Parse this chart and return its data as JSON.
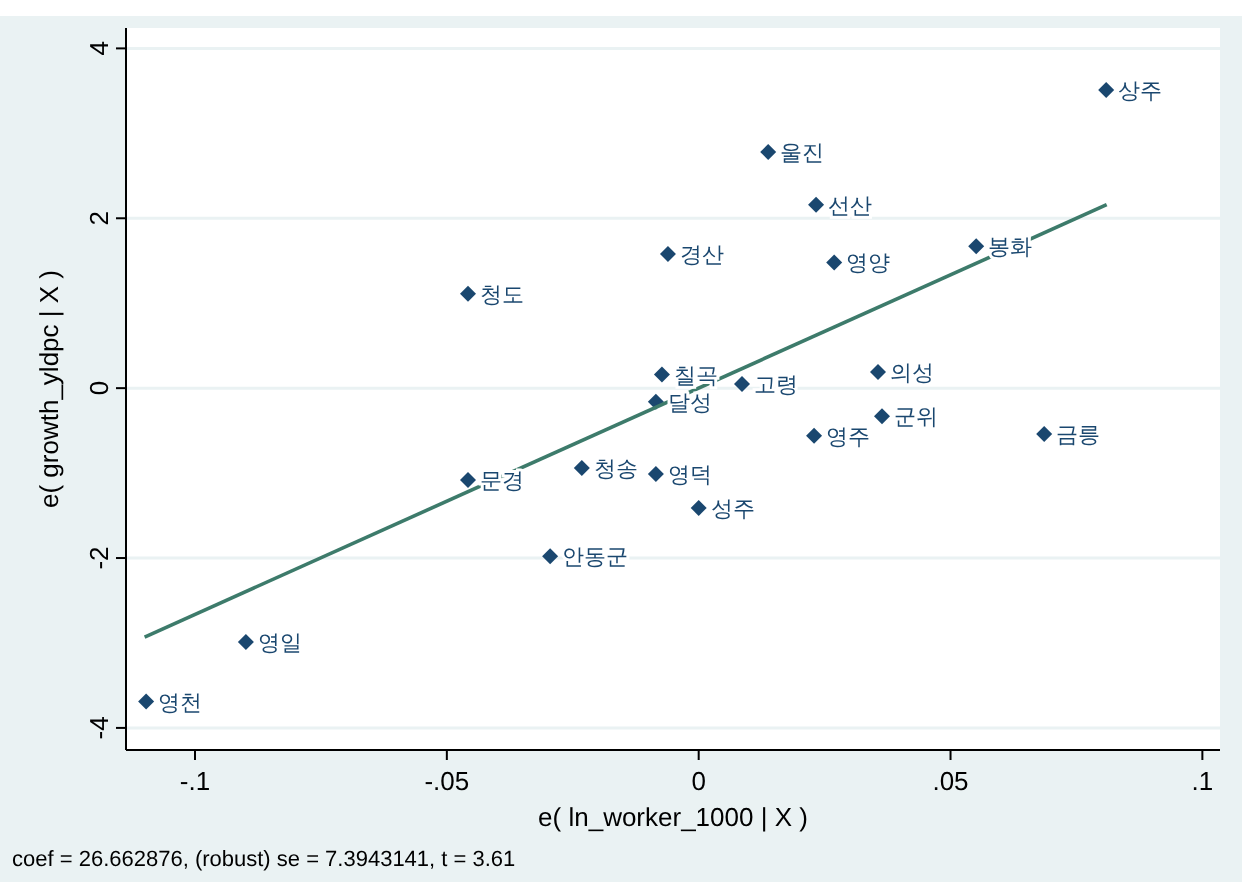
{
  "chart_data": {
    "type": "scatter",
    "xlabel": "e( ln_worker_1000 | X )",
    "ylabel": "e( growth_yldpc | X )",
    "xlim": [
      -0.1137,
      0.1035
    ],
    "ylim": [
      -4.26,
      4.24
    ],
    "xticks": [
      {
        "value": -0.1,
        "label": "-.1"
      },
      {
        "value": -0.05,
        "label": "-.05"
      },
      0,
      {
        "value": 0.05,
        "label": ".05"
      },
      {
        "value": 0.1,
        "label": ".1"
      }
    ],
    "yticks": [
      -4,
      -2,
      0,
      2,
      4
    ],
    "grid": "y",
    "marker": "diamond",
    "series": [
      {
        "color": "#1a476f",
        "x": [
          0.0809,
          0.0138,
          0.0233,
          -0.0061,
          0.0269,
          0.0551,
          -0.0458,
          -0.0073,
          -0.0085,
          0.0086,
          0.0356,
          0.0364,
          0.0229,
          0.0686,
          -0.0458,
          -0.0232,
          -0.0085,
          0.0,
          -0.0295,
          -0.0899,
          -0.1097
        ],
        "values": [
          3.51,
          2.78,
          2.16,
          1.58,
          1.48,
          1.67,
          1.11,
          0.16,
          -0.16,
          0.05,
          0.19,
          -0.33,
          -0.56,
          -0.54,
          -1.08,
          -0.94,
          -1.01,
          -1.41,
          -1.98,
          -2.99,
          -3.69
        ]
      },
      {
        "type": "line",
        "color": "#3d7b6b",
        "marker": "none",
        "x": [
          -0.11,
          0.081
        ],
        "values": [
          -2.93,
          2.16
        ]
      }
    ],
    "annotations": [
      {
        "text": "상주",
        "x": 0.0809,
        "y": 3.51
      },
      {
        "text": "울진",
        "x": 0.0138,
        "y": 2.78
      },
      {
        "text": "선산",
        "x": 0.0233,
        "y": 2.16
      },
      {
        "text": "경산",
        "x": -0.0061,
        "y": 1.58
      },
      {
        "text": "영양",
        "x": 0.0269,
        "y": 1.48
      },
      {
        "text": "봉화",
        "x": 0.0551,
        "y": 1.67
      },
      {
        "text": "청도",
        "x": -0.0458,
        "y": 1.11
      },
      {
        "text": "칠곡",
        "x": -0.0073,
        "y": 0.16
      },
      {
        "text": "달성",
        "x": -0.0085,
        "y": -0.16
      },
      {
        "text": "고령",
        "x": 0.0086,
        "y": 0.05
      },
      {
        "text": "의성",
        "x": 0.0356,
        "y": 0.19
      },
      {
        "text": "군위",
        "x": 0.0364,
        "y": -0.33
      },
      {
        "text": "영주",
        "x": 0.0229,
        "y": -0.56
      },
      {
        "text": "금릉",
        "x": 0.0686,
        "y": -0.54
      },
      {
        "text": "문경",
        "x": -0.0458,
        "y": -1.08
      },
      {
        "text": "청송",
        "x": -0.0232,
        "y": -0.94
      },
      {
        "text": "영덕",
        "x": -0.0085,
        "y": -1.01
      },
      {
        "text": "성주",
        "x": 0.0,
        "y": -1.41
      },
      {
        "text": "안동군",
        "x": -0.0295,
        "y": -1.98
      },
      {
        "text": "영일",
        "x": -0.0899,
        "y": -2.99
      },
      {
        "text": "영천",
        "x": -0.1097,
        "y": -3.69
      },
      "coef = 26.662876, (robust) se = 7.3943141, t = 3.61"
    ]
  }
}
